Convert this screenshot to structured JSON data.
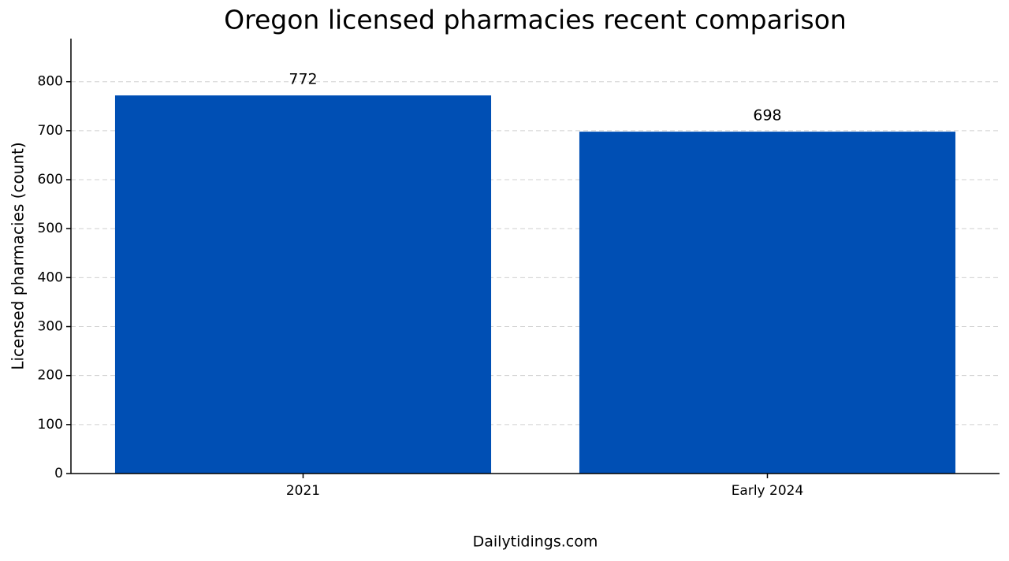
{
  "chart_data": {
    "type": "bar",
    "title": "Oregon licensed pharmacies recent comparison",
    "y_label": "Licensed pharmacies (count)",
    "source": "Dailytidings.com",
    "categories": [
      "2021",
      "Early 2024"
    ],
    "values": [
      772,
      698
    ],
    "color": "#004fb4",
    "ylim": [
      0,
      888
    ],
    "yticks": [
      0,
      100,
      200,
      300,
      400,
      500,
      600,
      700,
      800
    ],
    "grid": true
  }
}
